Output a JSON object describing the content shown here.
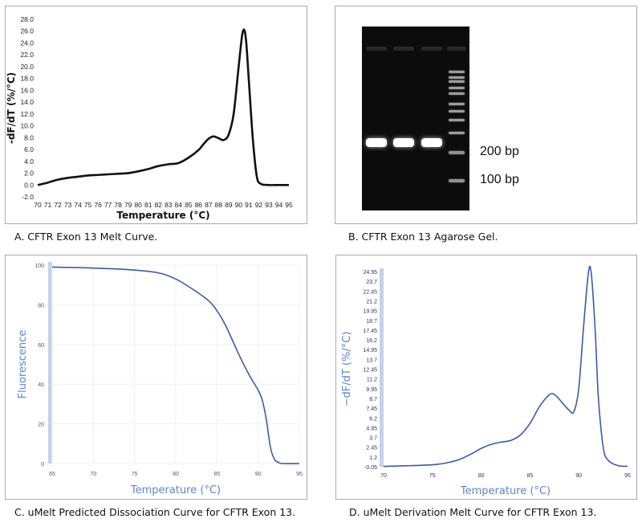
{
  "panels": {
    "a_caption": "A. CFTR Exon 13 Melt Curve.",
    "b_caption": "B. CFTR Exon 13 Agarose Gel.",
    "c_caption": "C. uMelt Predicted Dissociation Curve for CFTR Exon 13.",
    "d_caption": "D. uMelt Derivation Melt Curve for CFTR Exon 13.",
    "gel": {
      "marker_200": "200 bp",
      "marker_100": "100 bp",
      "sample_lanes": 3,
      "ladder_lane": true
    }
  },
  "chart_data": [
    {
      "type": "line",
      "panel": "A",
      "title": "",
      "xlabel": "Temperature (°C)",
      "ylabel": "-dF/dT (%/°C)",
      "xlim": [
        70,
        95
      ],
      "ylim": [
        -2,
        28
      ],
      "grid": false,
      "color": "#111111",
      "x_ticks": [
        "70",
        "71",
        "72",
        "73",
        "74",
        "75",
        "76",
        "77",
        "78",
        "79",
        "80",
        "81",
        "82",
        "83",
        "84",
        "85",
        "86",
        "87",
        "88",
        "89",
        "90",
        "91",
        "92",
        "93",
        "94",
        "95"
      ],
      "y_ticks": [
        "-2.0",
        "0.0",
        "2.0",
        "4.0",
        "6.0",
        "8.0",
        "10.0",
        "12.0",
        "14.0",
        "16.0",
        "18.0",
        "20.0",
        "22.0",
        "24.0",
        "26.0",
        "28.0"
      ],
      "x": [
        70,
        71,
        72,
        73,
        74,
        75,
        76,
        77,
        78,
        79,
        80,
        81,
        82,
        83,
        84,
        85,
        86,
        86.5,
        87,
        87.5,
        88,
        88.5,
        89,
        89.5,
        90,
        90.4,
        90.7,
        91,
        91.4,
        91.8,
        92.2,
        93,
        94,
        95
      ],
      "y": [
        0,
        0.4,
        0.9,
        1.2,
        1.4,
        1.6,
        1.7,
        1.8,
        1.9,
        2.0,
        2.3,
        2.7,
        3.2,
        3.5,
        3.7,
        4.6,
        5.9,
        6.9,
        7.8,
        8.2,
        7.9,
        7.6,
        8.5,
        12,
        20,
        25.8,
        25,
        18,
        8,
        1.5,
        0.2,
        0,
        0,
        0
      ]
    },
    {
      "type": "line",
      "panel": "C",
      "title": "",
      "xlabel": "Temperature (°C)",
      "ylabel": "Fluorescence",
      "xlim": [
        65,
        95
      ],
      "ylim": [
        0,
        100
      ],
      "grid": true,
      "color": "#3d5aa8",
      "x_ticks": [
        "65",
        "70",
        "75",
        "80",
        "85",
        "90",
        "95"
      ],
      "y_ticks": [
        "0",
        "20",
        "40",
        "60",
        "80",
        "100"
      ],
      "x": [
        65,
        70,
        75,
        78,
        80,
        82,
        84,
        85,
        86,
        87,
        88,
        89,
        90,
        90.5,
        91,
        91.5,
        92,
        92.5,
        93,
        95
      ],
      "y": [
        99,
        98.5,
        97.5,
        96,
        93,
        88,
        82,
        77,
        70,
        61,
        52,
        44,
        37,
        32,
        22,
        8,
        2,
        0.5,
        0,
        0
      ]
    },
    {
      "type": "line",
      "panel": "D",
      "title": "",
      "xlabel": "Temperature (°C)",
      "ylabel": "−dF/dT (%/°C)",
      "xlim": [
        70,
        95
      ],
      "ylim": [
        -0.05,
        24.95
      ],
      "grid": false,
      "color": "#3d5aa8",
      "x_ticks": [
        "70",
        "75",
        "80",
        "85",
        "90",
        "95"
      ],
      "y_ticks": [
        "-0.05",
        "1.2",
        "2.45",
        "3.7",
        "4.95",
        "6.2",
        "7.45",
        "8.7",
        "9.95",
        "11.2",
        "12.45",
        "13.7",
        "14.95",
        "16.2",
        "17.45",
        "18.7",
        "19.95",
        "21.2",
        "22.45",
        "23.7",
        "24.95"
      ],
      "x": [
        70,
        75,
        77,
        78,
        79,
        80,
        81,
        82,
        83,
        84,
        85,
        86,
        87,
        87.5,
        88,
        89,
        89.5,
        90,
        90.5,
        91,
        91.3,
        91.7,
        92,
        92.5,
        93,
        94,
        95
      ],
      "y": [
        0,
        0.2,
        0.6,
        1.0,
        1.6,
        2.3,
        2.8,
        3.1,
        3.3,
        4.0,
        5.5,
        7.7,
        9.2,
        9.2,
        8.6,
        7.2,
        7.0,
        10,
        18,
        24.9,
        24.5,
        17,
        9,
        2.5,
        0.8,
        0.1,
        0
      ]
    }
  ]
}
